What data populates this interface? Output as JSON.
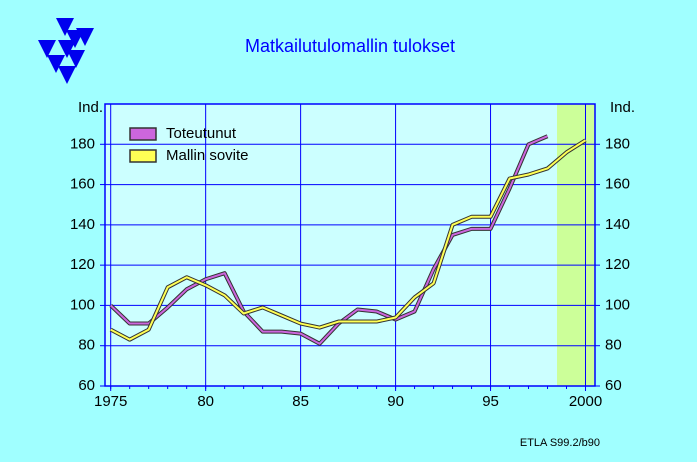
{
  "chart_data": {
    "type": "line",
    "title": "Matkailutulomallin  tulokset",
    "ylabel": "Ind.",
    "source": "ETLA S99.2/b90",
    "x": [
      1975,
      1976,
      1977,
      1978,
      1979,
      1980,
      1981,
      1982,
      1983,
      1984,
      1985,
      1986,
      1987,
      1988,
      1989,
      1990,
      1991,
      1992,
      1993,
      1994,
      1995,
      1996,
      1997,
      1998,
      1999,
      2000
    ],
    "series": [
      {
        "name": "Toteutunut",
        "color": "#cc66dd",
        "values": [
          100,
          91,
          91,
          99,
          108,
          113,
          116,
          97,
          87,
          87,
          86,
          81,
          91,
          98,
          97,
          93,
          97,
          118,
          135,
          138,
          138,
          158,
          180,
          184,
          null,
          null
        ]
      },
      {
        "name": "Mallin sovite",
        "color": "#ffff55",
        "values": [
          88,
          83,
          88,
          109,
          114,
          110,
          105,
          96,
          99,
          95,
          91,
          89,
          92,
          92,
          92,
          94,
          104,
          111,
          140,
          144,
          144,
          163,
          165,
          168,
          176,
          182
        ]
      }
    ],
    "forecast_span": [
      1998.5,
      2000.5
    ],
    "forecast_color": "#ccff99",
    "xlim": [
      1974.7,
      2000.5
    ],
    "xticks": [
      {
        "value": 1975,
        "label": "1975"
      },
      {
        "value": 1980,
        "label": "80"
      },
      {
        "value": 1985,
        "label": "85"
      },
      {
        "value": 1990,
        "label": "90"
      },
      {
        "value": 1995,
        "label": "95"
      },
      {
        "value": 2000,
        "label": "2000"
      }
    ],
    "ylim": [
      60,
      200
    ],
    "yticks": [
      60,
      80,
      100,
      120,
      140,
      160,
      180
    ],
    "grid": true,
    "legend": "upper left"
  }
}
